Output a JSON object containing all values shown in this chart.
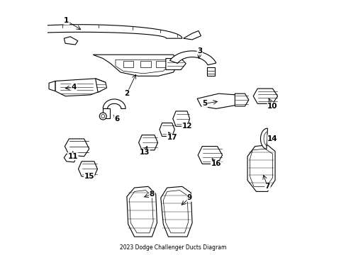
{
  "title": "2023 Dodge Challenger Ducts Diagram",
  "background_color": "#ffffff",
  "line_color": "#000000",
  "label_color": "#000000",
  "fig_width": 4.89,
  "fig_height": 3.6,
  "dpi": 100
}
